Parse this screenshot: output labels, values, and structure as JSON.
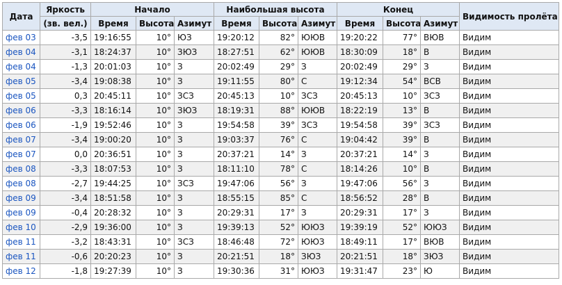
{
  "table": {
    "header": {
      "row1": [
        "Дата",
        "Яркость",
        "Начало",
        "Наибольшая высота",
        "Конец",
        "Видимость пролёта"
      ],
      "row2": [
        "(зв. вел.)",
        "Время",
        "Высота",
        "Азимут",
        "Время",
        "Высота",
        "Азимут",
        "Время",
        "Высота",
        "Азимут"
      ]
    },
    "rows": [
      [
        "фев 03",
        "-3,5",
        "19:16:55",
        "10°",
        "ЮЗ",
        "19:20:12",
        "82°",
        "ЮЮВ",
        "19:20:22",
        "77°",
        "ВЮВ",
        "Видим"
      ],
      [
        "фев 04",
        "-3,1",
        "18:24:37",
        "10°",
        "ЗЮЗ",
        "18:27:51",
        "62°",
        "ЮЮВ",
        "18:30:09",
        "18°",
        "В",
        "Видим"
      ],
      [
        "фев 04",
        "-1,3",
        "20:01:03",
        "10°",
        "З",
        "20:02:49",
        "29°",
        "З",
        "20:02:49",
        "29°",
        "З",
        "Видим"
      ],
      [
        "фев 05",
        "-3,4",
        "19:08:38",
        "10°",
        "З",
        "19:11:55",
        "80°",
        "С",
        "19:12:34",
        "54°",
        "ВСВ",
        "Видим"
      ],
      [
        "фев 05",
        "0,3",
        "20:45:11",
        "10°",
        "ЗСЗ",
        "20:45:13",
        "10°",
        "ЗСЗ",
        "20:45:13",
        "10°",
        "ЗСЗ",
        "Видим"
      ],
      [
        "фев 06",
        "-3,3",
        "18:16:14",
        "10°",
        "ЗЮЗ",
        "18:19:31",
        "88°",
        "ЮЮВ",
        "18:22:19",
        "13°",
        "В",
        "Видим"
      ],
      [
        "фев 06",
        "-1,9",
        "19:52:46",
        "10°",
        "З",
        "19:54:58",
        "39°",
        "ЗСЗ",
        "19:54:58",
        "39°",
        "ЗСЗ",
        "Видим"
      ],
      [
        "фев 07",
        "-3,4",
        "19:00:20",
        "10°",
        "З",
        "19:03:37",
        "76°",
        "С",
        "19:04:42",
        "39°",
        "В",
        "Видим"
      ],
      [
        "фев 07",
        "0,0",
        "20:36:51",
        "10°",
        "З",
        "20:37:21",
        "14°",
        "З",
        "20:37:21",
        "14°",
        "З",
        "Видим"
      ],
      [
        "фев 08",
        "-3,3",
        "18:07:53",
        "10°",
        "З",
        "18:11:10",
        "78°",
        "С",
        "18:14:26",
        "10°",
        "В",
        "Видим"
      ],
      [
        "фев 08",
        "-2,7",
        "19:44:25",
        "10°",
        "ЗСЗ",
        "19:47:06",
        "56°",
        "З",
        "19:47:06",
        "56°",
        "З",
        "Видим"
      ],
      [
        "фев 09",
        "-3,4",
        "18:51:58",
        "10°",
        "З",
        "18:55:15",
        "85°",
        "С",
        "18:56:52",
        "28°",
        "В",
        "Видим"
      ],
      [
        "фев 09",
        "-0,4",
        "20:28:32",
        "10°",
        "З",
        "20:29:31",
        "17°",
        "З",
        "20:29:31",
        "17°",
        "З",
        "Видим"
      ],
      [
        "фев 10",
        "-2,9",
        "19:36:00",
        "10°",
        "З",
        "19:39:13",
        "52°",
        "ЮЮЗ",
        "19:39:19",
        "52°",
        "ЮЮЗ",
        "Видим"
      ],
      [
        "фев 11",
        "-3,2",
        "18:43:31",
        "10°",
        "ЗСЗ",
        "18:46:48",
        "72°",
        "ЮЮЗ",
        "18:49:11",
        "17°",
        "ВЮВ",
        "Видим"
      ],
      [
        "фев 11",
        "-0,6",
        "20:20:23",
        "10°",
        "З",
        "20:21:51",
        "18°",
        "ЗЮЗ",
        "20:21:51",
        "18°",
        "ЗЮЗ",
        "Видим"
      ],
      [
        "фев 12",
        "-1,8",
        "19:27:39",
        "10°",
        "З",
        "19:30:36",
        "31°",
        "ЮЮЗ",
        "19:31:47",
        "23°",
        "Ю",
        "Видим"
      ]
    ]
  }
}
